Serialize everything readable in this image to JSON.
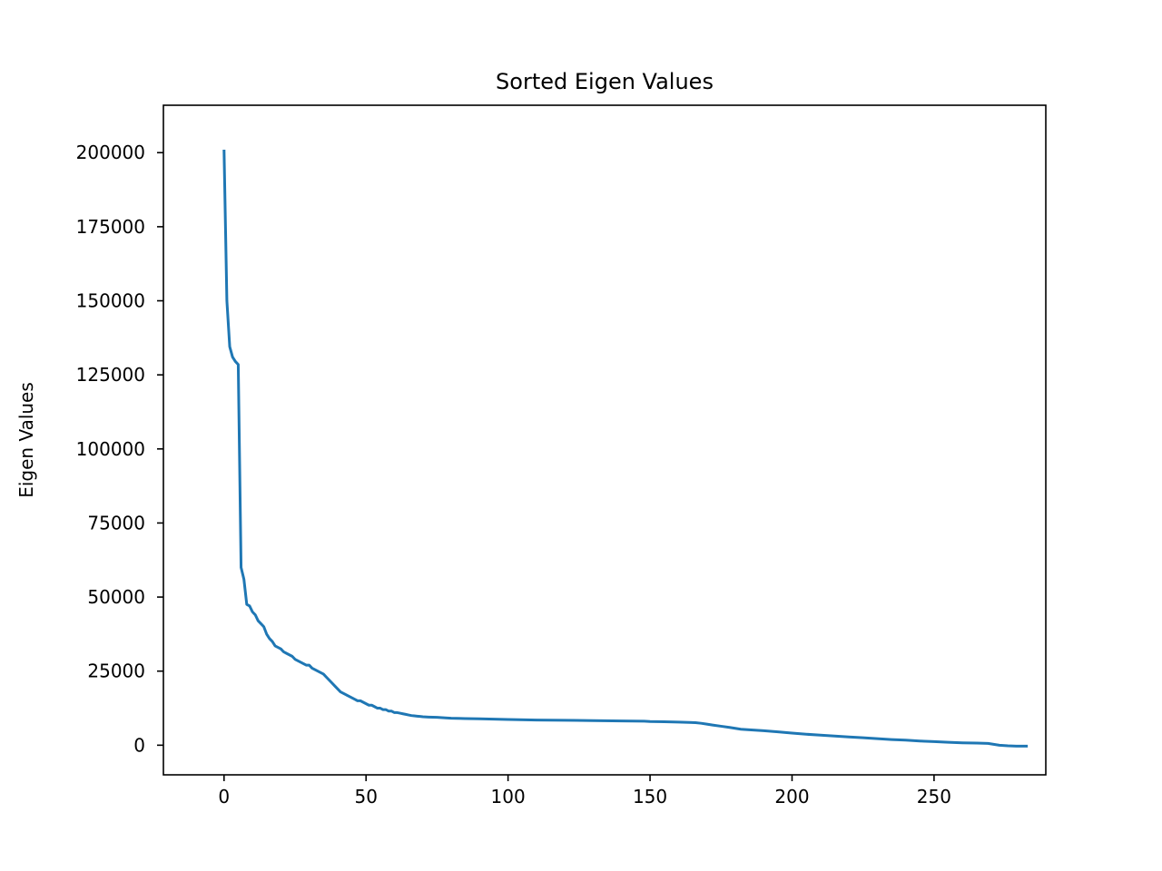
{
  "chart_data": {
    "type": "line",
    "title": "Sorted Eigen Values",
    "xlabel": "",
    "ylabel": "Eigen Values",
    "xlim": [
      -21.35,
      289.35
    ],
    "ylim": [
      -10000,
      216000
    ],
    "xticks": [
      0,
      50,
      100,
      150,
      200,
      250
    ],
    "yticks": [
      0,
      25000,
      50000,
      75000,
      100000,
      125000,
      150000,
      175000,
      200000
    ],
    "xtick_labels": [
      "0",
      "50",
      "100",
      "150",
      "200",
      "250"
    ],
    "ytick_labels": [
      "0",
      "25000",
      "50000",
      "75000",
      "100000",
      "125000",
      "150000",
      "175000",
      "200000"
    ],
    "grid": false,
    "series": [
      {
        "color": "#1f77b4",
        "x": [
          0,
          1,
          2,
          3,
          4,
          5,
          6,
          7,
          8,
          9,
          10,
          11,
          12,
          13,
          14,
          15,
          16,
          17,
          18,
          19,
          20,
          21,
          22,
          23,
          24,
          25,
          26,
          27,
          28,
          29,
          30,
          31,
          32,
          33,
          34,
          35,
          36,
          37,
          38,
          39,
          40,
          41,
          42,
          43,
          44,
          45,
          46,
          47,
          48,
          49,
          50,
          51,
          52,
          53,
          54,
          55,
          56,
          57,
          58,
          59,
          60,
          61,
          62,
          63,
          64,
          65,
          66,
          67,
          68,
          69,
          70,
          72,
          75,
          78,
          80,
          85,
          90,
          95,
          100,
          110,
          120,
          130,
          140,
          148,
          150,
          155,
          160,
          166,
          168,
          170,
          172,
          175,
          178,
          180,
          182,
          185,
          190,
          195,
          200,
          205,
          210,
          215,
          220,
          225,
          230,
          235,
          240,
          245,
          250,
          255,
          260,
          265,
          269,
          271,
          273,
          276,
          279,
          283
        ],
        "values": [
          201000,
          150000,
          134500,
          131000,
          129500,
          128500,
          60000,
          56000,
          47500,
          47000,
          45000,
          44000,
          42000,
          41000,
          40000,
          37500,
          36000,
          35000,
          33500,
          33000,
          32500,
          31500,
          31000,
          30500,
          30000,
          29000,
          28500,
          28000,
          27500,
          27000,
          27000,
          26000,
          25500,
          25000,
          24500,
          24000,
          23000,
          22000,
          21000,
          20000,
          19000,
          18000,
          17500,
          17000,
          16500,
          16000,
          15500,
          15000,
          15000,
          14500,
          14000,
          13500,
          13500,
          13000,
          12500,
          12500,
          12000,
          12000,
          11500,
          11500,
          11000,
          11000,
          10800,
          10600,
          10400,
          10200,
          10000,
          9900,
          9800,
          9700,
          9600,
          9500,
          9400,
          9200,
          9100,
          9000,
          8900,
          8800,
          8700,
          8500,
          8400,
          8300,
          8200,
          8100,
          8000,
          7900,
          7800,
          7600,
          7400,
          7100,
          6800,
          6400,
          6000,
          5700,
          5400,
          5200,
          4900,
          4500,
          4100,
          3700,
          3400,
          3100,
          2800,
          2500,
          2200,
          1900,
          1700,
          1400,
          1200,
          1000,
          800,
          700,
          600,
          300,
          0,
          -200,
          -300,
          -300
        ]
      }
    ]
  }
}
